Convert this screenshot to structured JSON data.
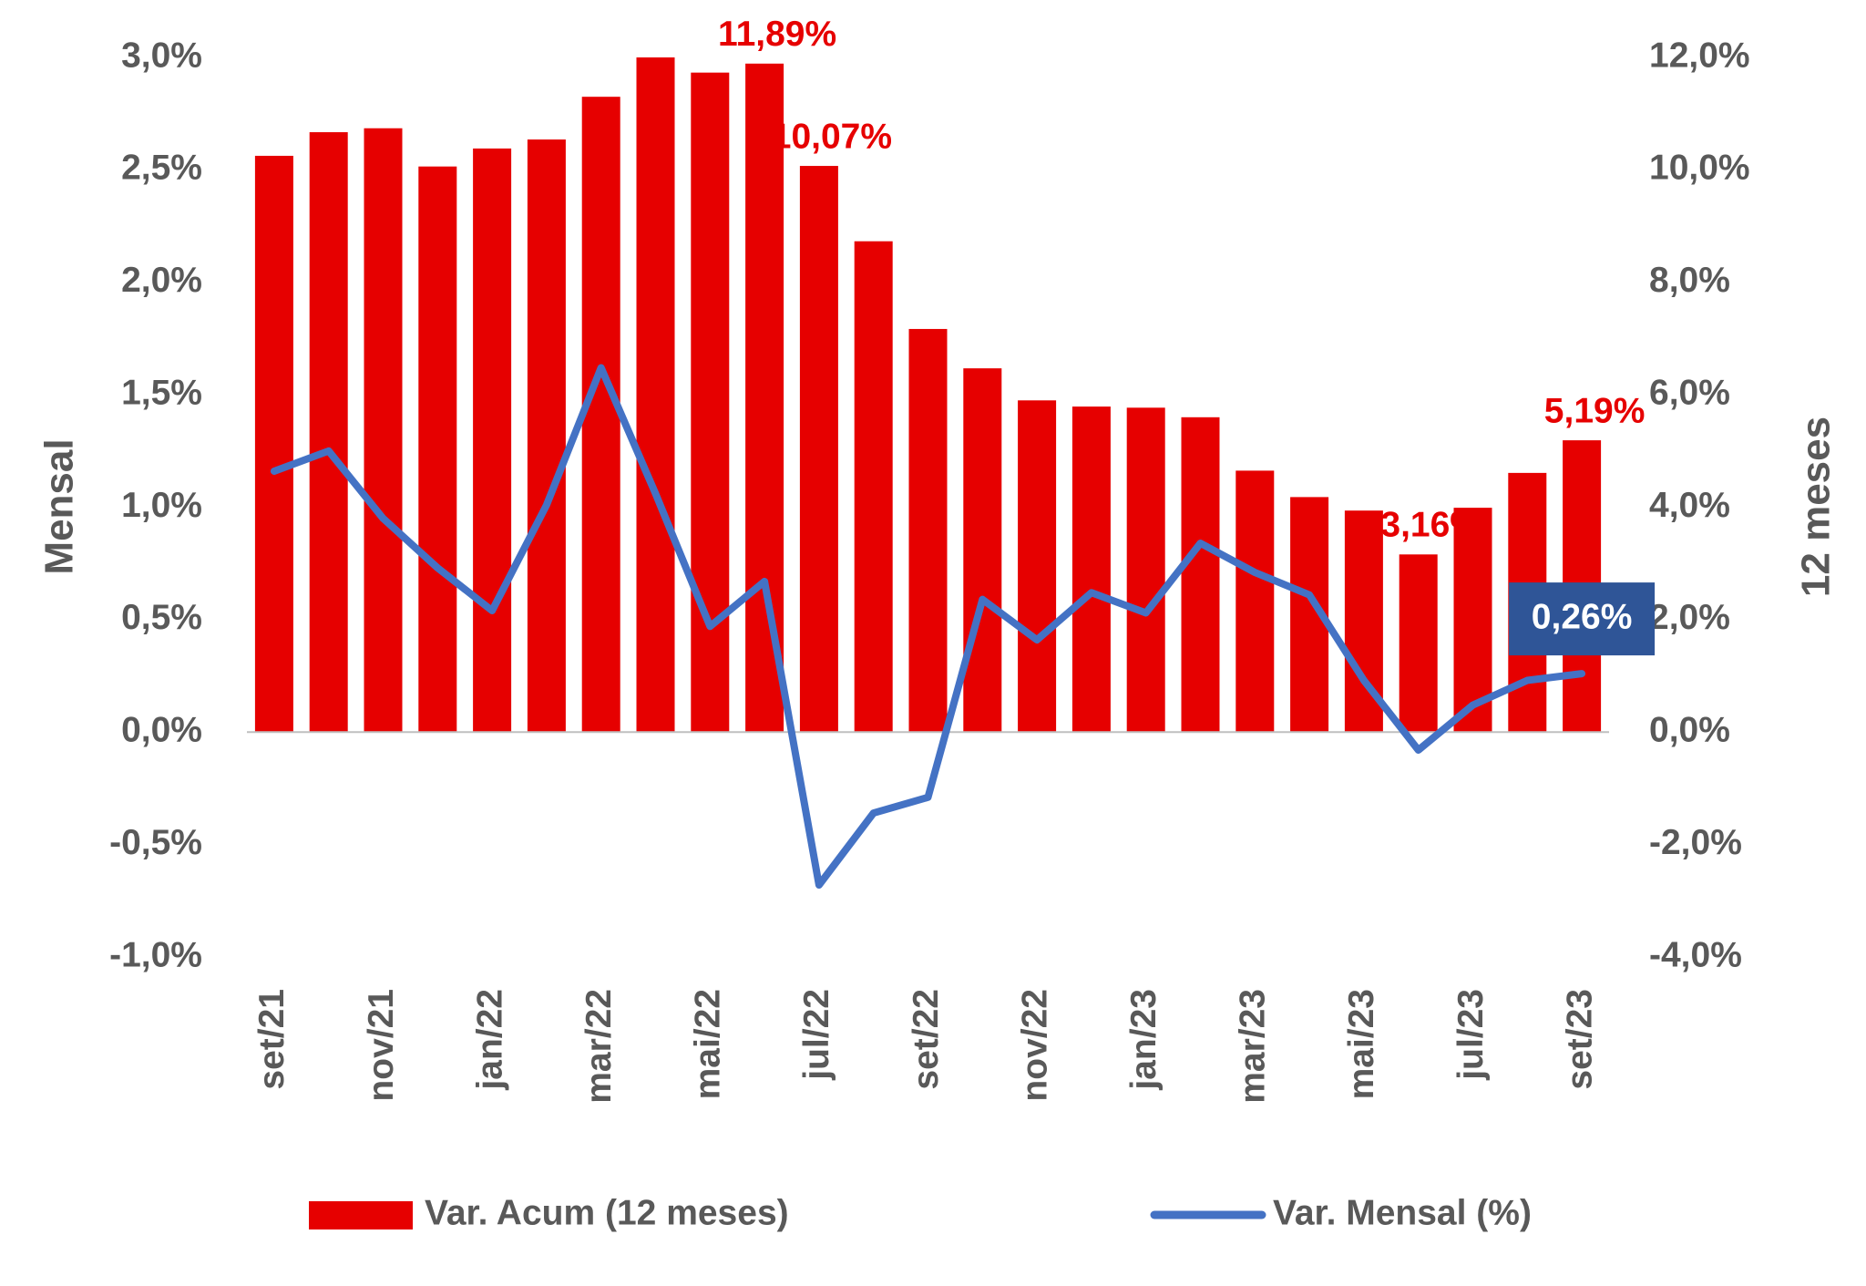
{
  "chart_data": {
    "type": "bar_line",
    "y_axis_label": "Mensal",
    "y2_axis_label": "12 meses",
    "categories": [
      "set/21",
      null,
      "nov/21",
      null,
      "jan/22",
      null,
      "mar/22",
      null,
      "mai/22",
      null,
      "jul/22",
      null,
      "set/22",
      null,
      "nov/22",
      null,
      "jan/23",
      null,
      "mar/23",
      null,
      "mai/23",
      null,
      "jul/23",
      null,
      "set/23"
    ],
    "series": [
      {
        "name": "Var. Acum (12 meses)",
        "type": "bar",
        "axis": "y2",
        "color": "#e60000",
        "values": [
          10.25,
          10.67,
          10.74,
          10.06,
          10.38,
          10.54,
          11.3,
          12.13,
          11.73,
          11.89,
          10.07,
          8.73,
          7.17,
          6.47,
          5.9,
          5.79,
          5.77,
          5.6,
          4.65,
          4.18,
          3.94,
          3.16,
          3.99,
          4.61,
          5.19
        ],
        "value_labels": [
          null,
          null,
          null,
          null,
          null,
          null,
          null,
          null,
          null,
          "11,89%",
          "10,07%",
          null,
          null,
          null,
          null,
          null,
          null,
          null,
          null,
          null,
          null,
          "3,16%",
          null,
          null,
          "5,19%"
        ]
      },
      {
        "name": "Var. Mensal (%)",
        "type": "line",
        "axis": "y",
        "color": "#4472c4",
        "values": [
          1.16,
          1.25,
          0.95,
          0.73,
          0.54,
          1.01,
          1.62,
          1.06,
          0.47,
          0.67,
          -0.68,
          -0.36,
          -0.29,
          0.59,
          0.41,
          0.62,
          0.53,
          0.84,
          0.71,
          0.61,
          0.23,
          -0.08,
          0.12,
          0.23,
          0.26
        ],
        "value_labels": [
          null,
          null,
          null,
          null,
          null,
          null,
          null,
          null,
          null,
          null,
          null,
          null,
          null,
          null,
          null,
          null,
          null,
          null,
          null,
          null,
          null,
          null,
          null,
          null,
          "0,26%"
        ]
      }
    ],
    "ylim": [
      -1,
      3
    ],
    "yticks": [
      {
        "value": -1,
        "label": "-1,0%"
      },
      {
        "value": -0.5,
        "label": "-0,5%"
      },
      {
        "value": 0,
        "label": "0,0%"
      },
      {
        "value": 0.5,
        "label": "0,5%"
      },
      {
        "value": 1,
        "label": "1,0%"
      },
      {
        "value": 1.5,
        "label": "1,5%"
      },
      {
        "value": 2,
        "label": "2,0%"
      },
      {
        "value": 2.5,
        "label": "2,5%"
      },
      {
        "value": 3,
        "label": "3,0%"
      }
    ],
    "y2lim": [
      -4,
      12
    ],
    "y2ticks": [
      {
        "value": -4,
        "label": "-4,0%"
      },
      {
        "value": -2,
        "label": "-2,0%"
      },
      {
        "value": 0,
        "label": "0,0%"
      },
      {
        "value": 2,
        "label": "2,0%"
      },
      {
        "value": 4,
        "label": "4,0%"
      },
      {
        "value": 6,
        "label": "6,0%"
      },
      {
        "value": 8,
        "label": "8,0%"
      },
      {
        "value": 10,
        "label": "10,0%"
      },
      {
        "value": 12,
        "label": "12,0%"
      }
    ],
    "legend": "bottom"
  }
}
